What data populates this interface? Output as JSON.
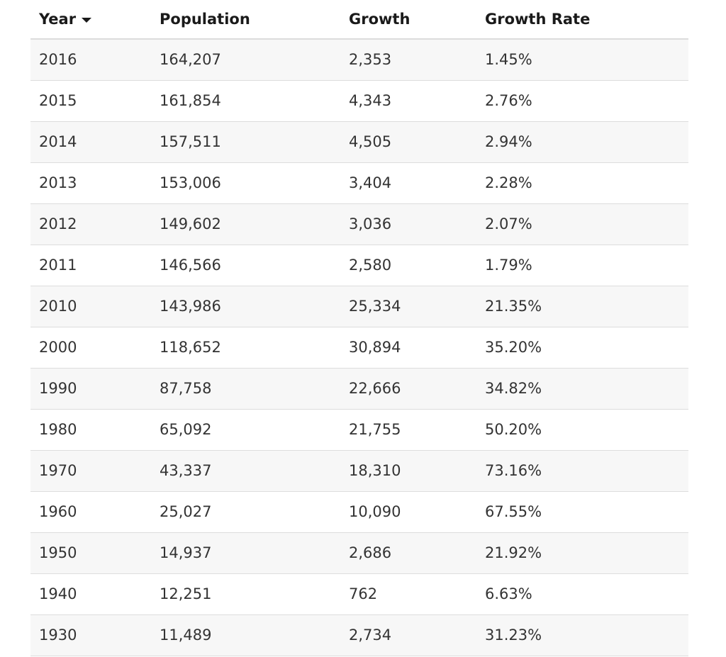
{
  "table": {
    "headers": {
      "year": "Year",
      "population": "Population",
      "growth": "Growth",
      "growth_rate": "Growth Rate"
    },
    "sort": {
      "column": "year",
      "direction": "descending",
      "icon": "caret-down-icon"
    },
    "rows": [
      {
        "year": "2016",
        "population": "164,207",
        "growth": "2,353",
        "growth_rate": "1.45%"
      },
      {
        "year": "2015",
        "population": "161,854",
        "growth": "4,343",
        "growth_rate": "2.76%"
      },
      {
        "year": "2014",
        "population": "157,511",
        "growth": "4,505",
        "growth_rate": "2.94%"
      },
      {
        "year": "2013",
        "population": "153,006",
        "growth": "3,404",
        "growth_rate": "2.28%"
      },
      {
        "year": "2012",
        "population": "149,602",
        "growth": "3,036",
        "growth_rate": "2.07%"
      },
      {
        "year": "2011",
        "population": "146,566",
        "growth": "2,580",
        "growth_rate": "1.79%"
      },
      {
        "year": "2010",
        "population": "143,986",
        "growth": "25,334",
        "growth_rate": "21.35%"
      },
      {
        "year": "2000",
        "population": "118,652",
        "growth": "30,894",
        "growth_rate": "35.20%"
      },
      {
        "year": "1990",
        "population": "87,758",
        "growth": "22,666",
        "growth_rate": "34.82%"
      },
      {
        "year": "1980",
        "population": "65,092",
        "growth": "21,755",
        "growth_rate": "50.20%"
      },
      {
        "year": "1970",
        "population": "43,337",
        "growth": "18,310",
        "growth_rate": "73.16%"
      },
      {
        "year": "1960",
        "population": "25,027",
        "growth": "10,090",
        "growth_rate": "67.55%"
      },
      {
        "year": "1950",
        "population": "14,937",
        "growth": "2,686",
        "growth_rate": "21.92%"
      },
      {
        "year": "1940",
        "population": "12,251",
        "growth": "762",
        "growth_rate": "6.63%"
      },
      {
        "year": "1930",
        "population": "11,489",
        "growth": "2,734",
        "growth_rate": "31.23%"
      }
    ]
  }
}
